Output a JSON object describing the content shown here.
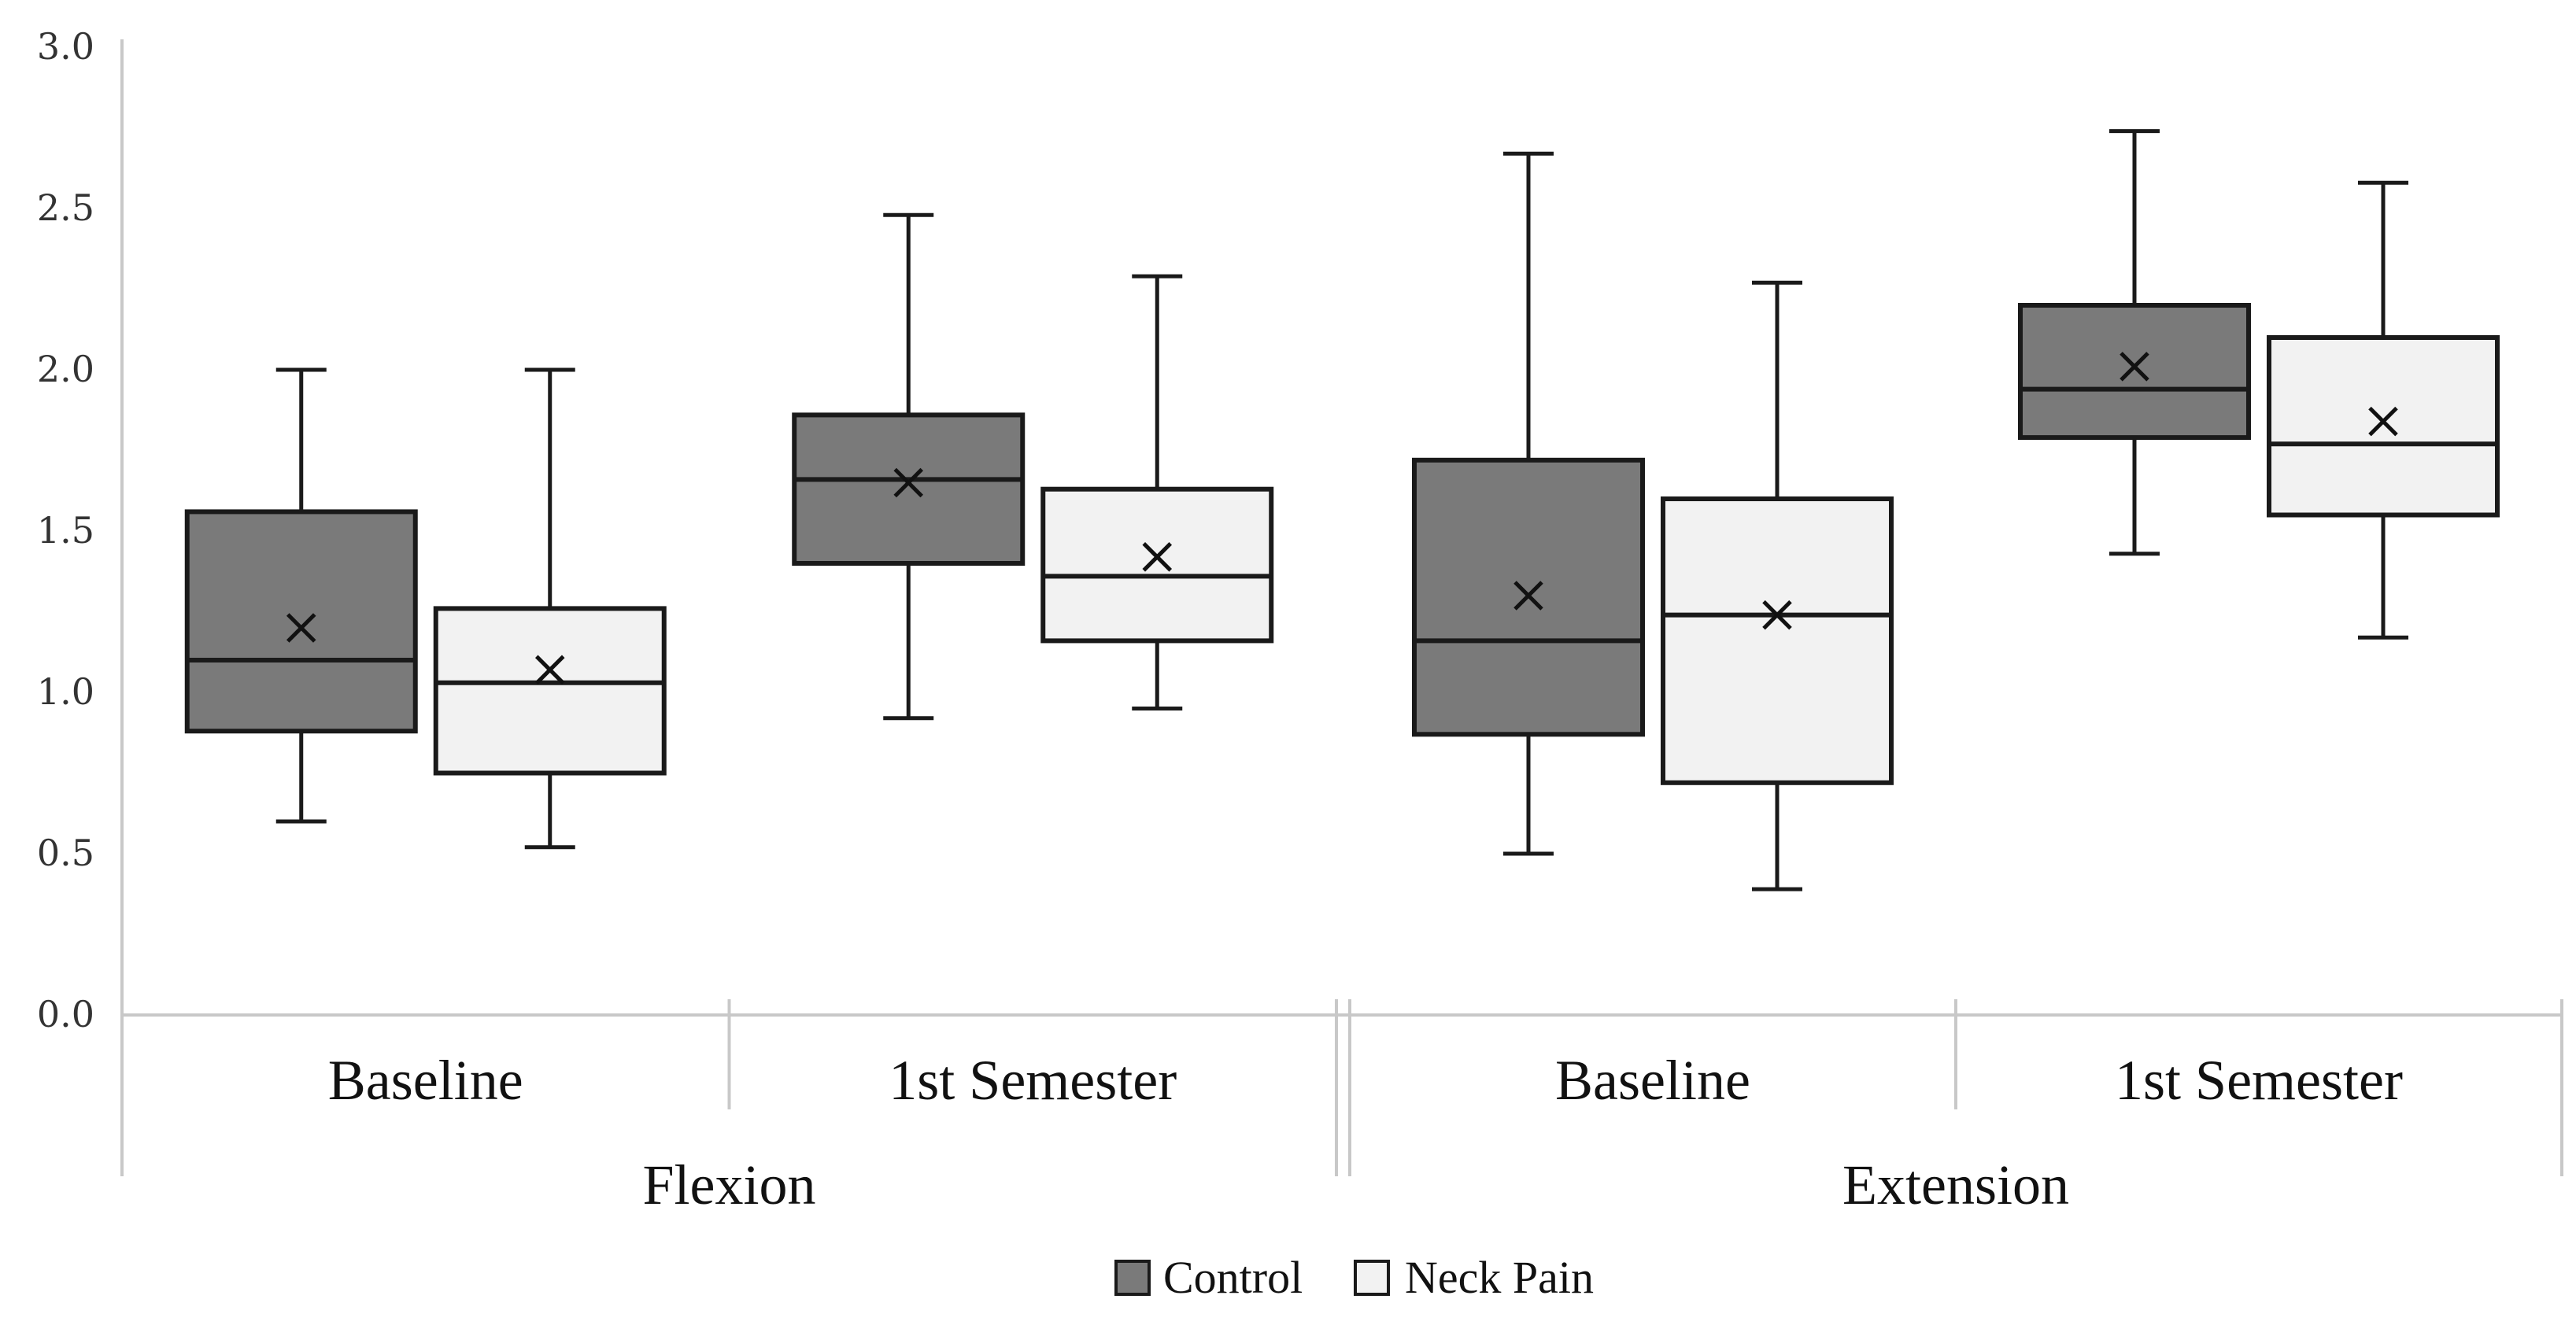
{
  "chart_data": {
    "type": "boxplot",
    "title": "",
    "ylabel": "",
    "ylim": [
      0,
      3
    ],
    "yticks": [
      "0.0",
      "0.5",
      "1.0",
      "1.5",
      "2.0",
      "2.5",
      "3.0"
    ],
    "groups": [
      {
        "name": "Flexion",
        "categories": [
          "Baseline",
          "1st Semester"
        ]
      },
      {
        "name": "Extension",
        "categories": [
          "Baseline",
          "1st Semester"
        ]
      }
    ],
    "series": [
      {
        "name": "Control",
        "color": "#7a7a7a"
      },
      {
        "name": "Neck Pain",
        "color": "#f2f2f2"
      }
    ],
    "boxes": [
      {
        "group": "Flexion",
        "category": "Baseline",
        "series": "Control",
        "min": 0.6,
        "q1": 0.88,
        "median": 1.1,
        "q3": 1.56,
        "max": 2.0,
        "mean": 1.2
      },
      {
        "group": "Flexion",
        "category": "Baseline",
        "series": "Neck Pain",
        "min": 0.52,
        "q1": 0.75,
        "median": 1.03,
        "q3": 1.26,
        "max": 2.0,
        "mean": 1.07
      },
      {
        "group": "Flexion",
        "category": "1st Semester",
        "series": "Control",
        "min": 0.92,
        "q1": 1.4,
        "median": 1.66,
        "q3": 1.86,
        "max": 2.48,
        "mean": 1.65
      },
      {
        "group": "Flexion",
        "category": "1st Semester",
        "series": "Neck Pain",
        "min": 0.95,
        "q1": 1.16,
        "median": 1.36,
        "q3": 1.63,
        "max": 2.29,
        "mean": 1.42
      },
      {
        "group": "Extension",
        "category": "Baseline",
        "series": "Control",
        "min": 0.5,
        "q1": 0.87,
        "median": 1.16,
        "q3": 1.72,
        "max": 2.67,
        "mean": 1.3
      },
      {
        "group": "Extension",
        "category": "Baseline",
        "series": "Neck Pain",
        "min": 0.39,
        "q1": 0.72,
        "median": 1.24,
        "q3": 1.6,
        "max": 2.27,
        "mean": 1.24
      },
      {
        "group": "Extension",
        "category": "1st Semester",
        "series": "Control",
        "min": 1.43,
        "q1": 1.79,
        "median": 1.94,
        "q3": 2.2,
        "max": 2.74,
        "mean": 2.01
      },
      {
        "group": "Extension",
        "category": "1st Semester",
        "series": "Neck Pain",
        "min": 1.17,
        "q1": 1.55,
        "median": 1.77,
        "q3": 2.1,
        "max": 2.58,
        "mean": 1.84
      }
    ],
    "legend_position": "bottom-center",
    "grid": false
  }
}
